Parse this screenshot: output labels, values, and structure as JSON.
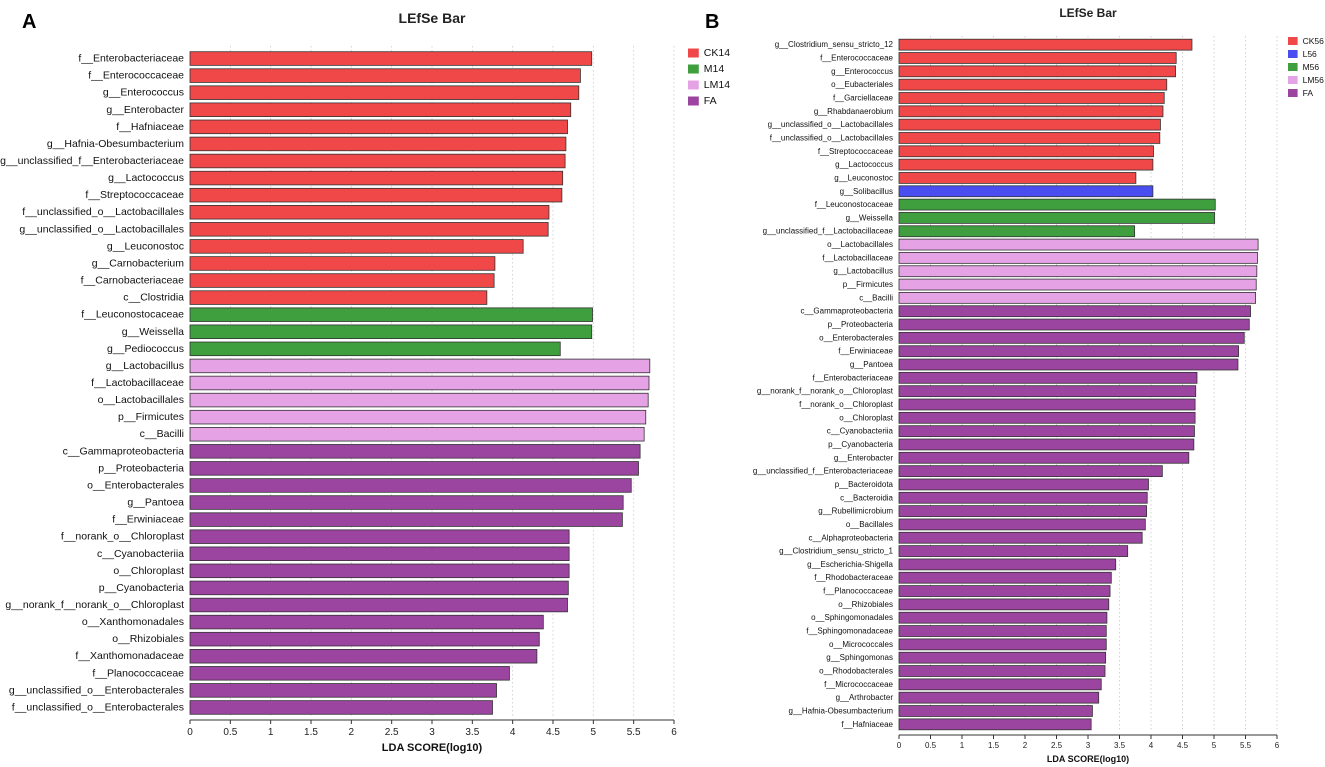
{
  "chart_data": [
    {
      "type": "bar",
      "orientation": "horizontal",
      "panel": "A",
      "title": "LEfSe Bar",
      "xlabel": "LDA SCORE(log10)",
      "ylabel": "",
      "xlim": [
        0,
        6
      ],
      "xticks": [
        "0",
        "0.5",
        "1",
        "1.5",
        "2",
        "2.5",
        "3",
        "3.5",
        "4",
        "4.5",
        "5",
        "5.5",
        "6"
      ],
      "grid": "vertical dotted",
      "legend_position": "top-right",
      "groups": [
        {
          "name": "CK14",
          "color": "#f04848"
        },
        {
          "name": "M14",
          "color": "#3f9f3f"
        },
        {
          "name": "LM14",
          "color": "#e5a3e5"
        },
        {
          "name": "FA",
          "color": "#9b44a0"
        }
      ],
      "bars": [
        {
          "label": "f__Enterobacteriaceae",
          "value": 4.98,
          "group": "CK14"
        },
        {
          "label": "f__Enterococcaceae",
          "value": 4.84,
          "group": "CK14"
        },
        {
          "label": "g__Enterococcus",
          "value": 4.82,
          "group": "CK14"
        },
        {
          "label": "g__Enterobacter",
          "value": 4.72,
          "group": "CK14"
        },
        {
          "label": "f__Hafniaceae",
          "value": 4.68,
          "group": "CK14"
        },
        {
          "label": "g__Hafnia-Obesumbacterium",
          "value": 4.66,
          "group": "CK14"
        },
        {
          "label": "g__unclassified_f__Enterobacteriaceae",
          "value": 4.65,
          "group": "CK14"
        },
        {
          "label": "g__Lactococcus",
          "value": 4.62,
          "group": "CK14"
        },
        {
          "label": "f__Streptococcaceae",
          "value": 4.61,
          "group": "CK14"
        },
        {
          "label": "f__unclassified_o__Lactobacillales",
          "value": 4.45,
          "group": "CK14"
        },
        {
          "label": "g__unclassified_o__Lactobacillales",
          "value": 4.44,
          "group": "CK14"
        },
        {
          "label": "g__Leuconostoc",
          "value": 4.13,
          "group": "CK14"
        },
        {
          "label": "g__Carnobacterium",
          "value": 3.78,
          "group": "CK14"
        },
        {
          "label": "f__Carnobacteriaceae",
          "value": 3.77,
          "group": "CK14"
        },
        {
          "label": "c__Clostridia",
          "value": 3.68,
          "group": "CK14"
        },
        {
          "label": "f__Leuconostocaceae",
          "value": 4.99,
          "group": "M14"
        },
        {
          "label": "g__Weissella",
          "value": 4.98,
          "group": "M14"
        },
        {
          "label": "g__Pediococcus",
          "value": 4.59,
          "group": "M14"
        },
        {
          "label": "g__Lactobacillus",
          "value": 5.7,
          "group": "LM14"
        },
        {
          "label": "f__Lactobacillaceae",
          "value": 5.69,
          "group": "LM14"
        },
        {
          "label": "o__Lactobacillales",
          "value": 5.68,
          "group": "LM14"
        },
        {
          "label": "p__Firmicutes",
          "value": 5.65,
          "group": "LM14"
        },
        {
          "label": "c__Bacilli",
          "value": 5.63,
          "group": "LM14"
        },
        {
          "label": "c__Gammaproteobacteria",
          "value": 5.58,
          "group": "FA"
        },
        {
          "label": "p__Proteobacteria",
          "value": 5.56,
          "group": "FA"
        },
        {
          "label": "o__Enterobacterales",
          "value": 5.47,
          "group": "FA"
        },
        {
          "label": "g__Pantoea",
          "value": 5.37,
          "group": "FA"
        },
        {
          "label": "f__Erwiniaceae",
          "value": 5.36,
          "group": "FA"
        },
        {
          "label": "f__norank_o__Chloroplast",
          "value": 4.7,
          "group": "FA"
        },
        {
          "label": "c__Cyanobacteriia",
          "value": 4.7,
          "group": "FA"
        },
        {
          "label": "o__Chloroplast",
          "value": 4.7,
          "group": "FA"
        },
        {
          "label": "p__Cyanobacteria",
          "value": 4.69,
          "group": "FA"
        },
        {
          "label": "g__norank_f__norank_o__Chloroplast",
          "value": 4.68,
          "group": "FA"
        },
        {
          "label": "o__Xanthomonadales",
          "value": 4.38,
          "group": "FA"
        },
        {
          "label": "o__Rhizobiales",
          "value": 4.33,
          "group": "FA"
        },
        {
          "label": "f__Xanthomonadaceae",
          "value": 4.3,
          "group": "FA"
        },
        {
          "label": "f__Planococcaceae",
          "value": 3.96,
          "group": "FA"
        },
        {
          "label": "g__unclassified_o__Enterobacterales",
          "value": 3.8,
          "group": "FA"
        },
        {
          "label": "f__unclassified_o__Enterobacterales",
          "value": 3.75,
          "group": "FA"
        }
      ]
    },
    {
      "type": "bar",
      "orientation": "horizontal",
      "panel": "B",
      "title": "LEfSe Bar",
      "xlabel": "LDA SCORE(log10)",
      "ylabel": "",
      "xlim": [
        0,
        6
      ],
      "xticks": [
        "0",
        "0.5",
        "1",
        "1.5",
        "2",
        "2.5",
        "3",
        "3.5",
        "4",
        "4.5",
        "5",
        "5.5",
        "6"
      ],
      "grid": "vertical dotted",
      "legend_position": "top-right",
      "groups": [
        {
          "name": "CK56",
          "color": "#f04848"
        },
        {
          "name": "L56",
          "color": "#4a4ef0"
        },
        {
          "name": "M56",
          "color": "#3f9f3f"
        },
        {
          "name": "LM56",
          "color": "#e5a3e5"
        },
        {
          "name": "FA",
          "color": "#9b44a0"
        }
      ],
      "bars": [
        {
          "label": "g__Clostridium_sensu_stricto_12",
          "value": 4.65,
          "group": "CK56"
        },
        {
          "label": "f__Enterococcaceae",
          "value": 4.4,
          "group": "CK56"
        },
        {
          "label": "g__Enterococcus",
          "value": 4.39,
          "group": "CK56"
        },
        {
          "label": "o__Eubacteriales",
          "value": 4.25,
          "group": "CK56"
        },
        {
          "label": "f__Garciellaceae",
          "value": 4.21,
          "group": "CK56"
        },
        {
          "label": "g__Rhabdanaerobium",
          "value": 4.19,
          "group": "CK56"
        },
        {
          "label": "g__unclassified_o__Lactobacillales",
          "value": 4.15,
          "group": "CK56"
        },
        {
          "label": "f__unclassified_o__Lactobacillales",
          "value": 4.14,
          "group": "CK56"
        },
        {
          "label": "f__Streptococcaceae",
          "value": 4.04,
          "group": "CK56"
        },
        {
          "label": "g__Lactococcus",
          "value": 4.03,
          "group": "CK56"
        },
        {
          "label": "g__Leuconostoc",
          "value": 3.76,
          "group": "CK56"
        },
        {
          "label": "g__Solibacillus",
          "value": 4.03,
          "group": "L56"
        },
        {
          "label": "f__Leuconostocaceae",
          "value": 5.02,
          "group": "M56"
        },
        {
          "label": "g__Weissella",
          "value": 5.01,
          "group": "M56"
        },
        {
          "label": "g__unclassified_f__Lactobacillaceae",
          "value": 3.74,
          "group": "M56"
        },
        {
          "label": "o__Lactobacillales",
          "value": 5.7,
          "group": "LM56"
        },
        {
          "label": "f__Lactobacillaceae",
          "value": 5.69,
          "group": "LM56"
        },
        {
          "label": "g__Lactobacillus",
          "value": 5.68,
          "group": "LM56"
        },
        {
          "label": "p__Firmicutes",
          "value": 5.67,
          "group": "LM56"
        },
        {
          "label": "c__Bacilli",
          "value": 5.66,
          "group": "LM56"
        },
        {
          "label": "c__Gammaproteobacteria",
          "value": 5.58,
          "group": "FA"
        },
        {
          "label": "p__Proteobacteria",
          "value": 5.56,
          "group": "FA"
        },
        {
          "label": "o__Enterobacterales",
          "value": 5.48,
          "group": "FA"
        },
        {
          "label": "f__Erwiniaceae",
          "value": 5.39,
          "group": "FA"
        },
        {
          "label": "g__Pantoea",
          "value": 5.38,
          "group": "FA"
        },
        {
          "label": "f__Enterobacteriaceae",
          "value": 4.73,
          "group": "FA"
        },
        {
          "label": "g__norank_f__norank_o__Chloroplast",
          "value": 4.71,
          "group": "FA"
        },
        {
          "label": "f__norank_o__Chloroplast",
          "value": 4.7,
          "group": "FA"
        },
        {
          "label": "o__Chloroplast",
          "value": 4.7,
          "group": "FA"
        },
        {
          "label": "c__Cyanobacteriia",
          "value": 4.69,
          "group": "FA"
        },
        {
          "label": "p__Cyanobacteria",
          "value": 4.68,
          "group": "FA"
        },
        {
          "label": "g__Enterobacter",
          "value": 4.6,
          "group": "FA"
        },
        {
          "label": "g__unclassified_f__Enterobacteriaceae",
          "value": 4.18,
          "group": "FA"
        },
        {
          "label": "p__Bacteroidota",
          "value": 3.96,
          "group": "FA"
        },
        {
          "label": "c__Bacteroidia",
          "value": 3.94,
          "group": "FA"
        },
        {
          "label": "g__Rubellimicrobium",
          "value": 3.93,
          "group": "FA"
        },
        {
          "label": "o__Bacillales",
          "value": 3.91,
          "group": "FA"
        },
        {
          "label": "c__Alphaproteobacteria",
          "value": 3.86,
          "group": "FA"
        },
        {
          "label": "g__Clostridium_sensu_stricto_1",
          "value": 3.63,
          "group": "FA"
        },
        {
          "label": "g__Escherichia-Shigella",
          "value": 3.44,
          "group": "FA"
        },
        {
          "label": "f__Rhodobacteraceae",
          "value": 3.37,
          "group": "FA"
        },
        {
          "label": "f__Planococcaceae",
          "value": 3.35,
          "group": "FA"
        },
        {
          "label": "o__Rhizobiales",
          "value": 3.33,
          "group": "FA"
        },
        {
          "label": "o__Sphingomonadales",
          "value": 3.3,
          "group": "FA"
        },
        {
          "label": "f__Sphingomonadaceae",
          "value": 3.29,
          "group": "FA"
        },
        {
          "label": "o__Micrococcales",
          "value": 3.29,
          "group": "FA"
        },
        {
          "label": "g__Sphingomonas",
          "value": 3.28,
          "group": "FA"
        },
        {
          "label": "o__Rhodobacterales",
          "value": 3.27,
          "group": "FA"
        },
        {
          "label": "f__Micrococcaceae",
          "value": 3.21,
          "group": "FA"
        },
        {
          "label": "g__Arthrobacter",
          "value": 3.17,
          "group": "FA"
        },
        {
          "label": "g__Hafnia-Obesumbacterium",
          "value": 3.07,
          "group": "FA"
        },
        {
          "label": "f__Hafniaceae",
          "value": 3.05,
          "group": "FA"
        }
      ]
    }
  ]
}
